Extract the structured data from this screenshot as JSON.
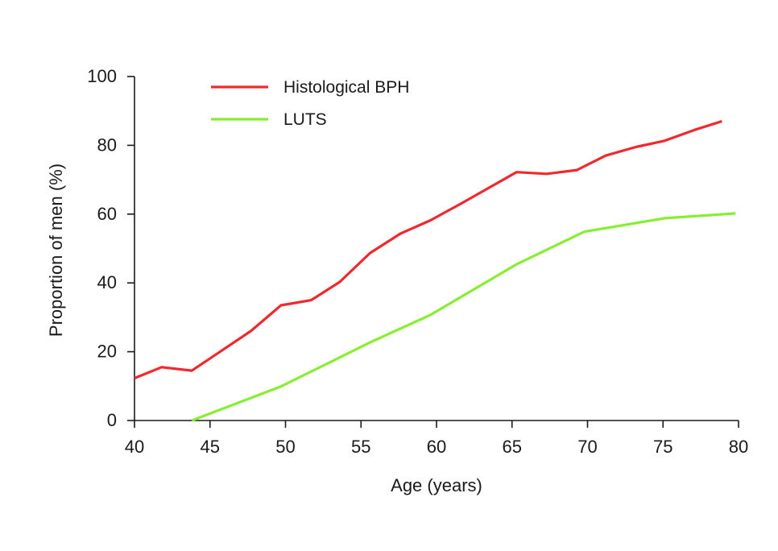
{
  "chart_data": {
    "type": "line",
    "title": "",
    "xlabel": "Age (years)",
    "ylabel": "Proportion of men (%)",
    "xlim": [
      40,
      80
    ],
    "ylim": [
      0,
      100
    ],
    "x_ticks": [
      40,
      45,
      50,
      55,
      60,
      65,
      70,
      75,
      80
    ],
    "y_ticks": [
      0,
      20,
      40,
      60,
      80,
      100
    ],
    "grid": false,
    "legend_position": "top-left",
    "series": [
      {
        "name": "Histological BPH",
        "color": "#ee2a2f",
        "points": [
          [
            40,
            12.3
          ],
          [
            41.8,
            15.5
          ],
          [
            43.8,
            14.5
          ],
          [
            47.7,
            26
          ],
          [
            49.7,
            33.5
          ],
          [
            51.7,
            35
          ],
          [
            53.6,
            40.3
          ],
          [
            55.6,
            48.7
          ],
          [
            57.6,
            54.3
          ],
          [
            59.6,
            58.2
          ],
          [
            61.6,
            63
          ],
          [
            65.3,
            72.2
          ],
          [
            67.3,
            71.7
          ],
          [
            69.3,
            72.8
          ],
          [
            71.2,
            77
          ],
          [
            73.2,
            79.5
          ],
          [
            75.1,
            81.3
          ],
          [
            77.1,
            84.5
          ],
          [
            78.9,
            87
          ]
        ]
      },
      {
        "name": "LUTS",
        "color": "#88ee33",
        "points": [
          [
            43.8,
            0
          ],
          [
            49.7,
            9.9
          ],
          [
            55.6,
            22.7
          ],
          [
            59.6,
            30.7
          ],
          [
            65.3,
            45.4
          ],
          [
            69.8,
            54.9
          ],
          [
            75.1,
            58.8
          ],
          [
            79.8,
            60.2
          ]
        ]
      }
    ]
  }
}
